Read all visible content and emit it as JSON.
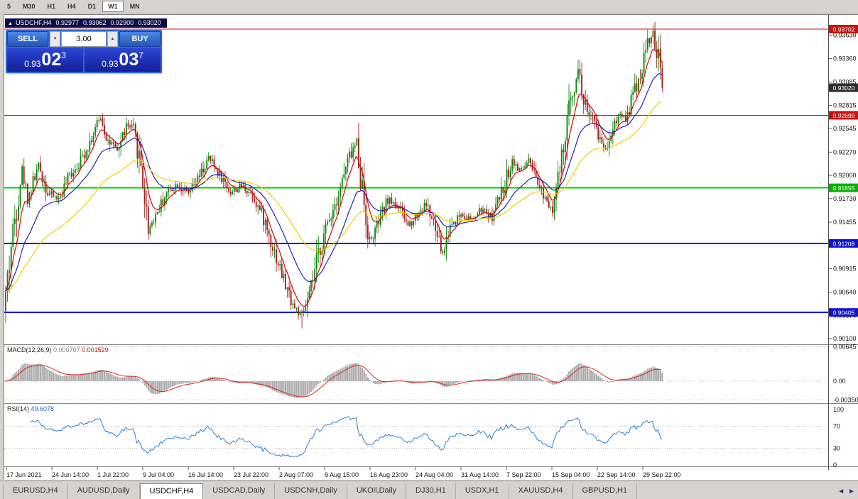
{
  "toolbar": {
    "periods": [
      "5",
      "M30",
      "H1",
      "H4",
      "D1",
      "W1",
      "MN"
    ],
    "active_period": "W1"
  },
  "chart": {
    "symbol": "USDCHF,H4",
    "open": "0.92977",
    "high": "0.93062",
    "low": "0.92900",
    "close": "0.93020"
  },
  "icons": {
    "symbol_marker": "▲",
    "vol_up": "▲",
    "vol_down": "▼",
    "tab_left": "◄",
    "tab_right": "►"
  },
  "trade_panel": {
    "sell_label": "SELL",
    "buy_label": "BUY",
    "volume": "3.00",
    "sell_price_main": "0.93",
    "sell_price_big": "02",
    "sell_price_sup": "3",
    "buy_price_main": "0.93",
    "buy_price_big": "03",
    "buy_price_sup": "7"
  },
  "price_axis_ticks": [
    "0.93630",
    "0.93360",
    "0.93085",
    "0.92815",
    "0.92545",
    "0.92270",
    "0.92000",
    "0.91730",
    "0.91455",
    "0.91185",
    "0.90915",
    "0.90640",
    "0.90370",
    "0.90100"
  ],
  "price_badges": [
    {
      "value": "0.93702",
      "color": "#cc1111"
    },
    {
      "value": "0.93020",
      "color": "#2f2f2f"
    },
    {
      "value": "0.92699",
      "color": "#cc1111"
    },
    {
      "value": "0.91855",
      "color": "#00b300"
    },
    {
      "value": "0.91208",
      "color": "#1111cc"
    },
    {
      "value": "0.90405",
      "color": "#1111cc"
    }
  ],
  "time_axis": [
    "17 Jun 2021",
    "24 Jun 14:00",
    "1 Jul 22:00",
    "9 Jul 04:00",
    "16 Jul 14:00",
    "23 Jul 22:00",
    "2 Aug 07:00",
    "9 Aug 15:00",
    "16 Aug 23:00",
    "24 Aug 04:00",
    "31 Aug 14:00",
    "7 Sep 22:00",
    "15 Sep 04:00",
    "22 Sep 14:00",
    "29 Sep 22:00"
  ],
  "macd_panel": {
    "name": "MACD(12,26,9)",
    "value_main": "0.000707",
    "value_signal": "0.001529",
    "axis_labels": [
      "0.00645",
      "0.00",
      "-0.00350"
    ]
  },
  "rsi_panel": {
    "name": "RSI(14)",
    "value": "49.6078",
    "axis_labels": [
      "100",
      "70",
      "30",
      "0"
    ]
  },
  "tabs": [
    "EURUSD,H4",
    "AUDUSD,Daily",
    "USDCHF,H4",
    "USDCAD,Daily",
    "USDCNH,Daily",
    "UKOil,Daily",
    "DJ30,H1",
    "USDX,H1",
    "XAUUSD,H4",
    "GBPUSD,H1"
  ],
  "active_tab": "USDCHF,H4",
  "chart_data": {
    "type": "candlestick",
    "symbol": "USDCHF",
    "timeframe": "H4",
    "n_candles": 360,
    "seed": 42,
    "price_range_visible": [
      0.9004,
      0.9385
    ],
    "up_color": "#0e8a0e",
    "down_color": "#aa1f1f",
    "close_anchors": [
      [
        0,
        0.9062
      ],
      [
        3,
        0.9118
      ],
      [
        6,
        0.9165
      ],
      [
        9,
        0.9208
      ],
      [
        12,
        0.9172
      ],
      [
        18,
        0.9212
      ],
      [
        23,
        0.918
      ],
      [
        29,
        0.9172
      ],
      [
        35,
        0.92
      ],
      [
        41,
        0.9218
      ],
      [
        48,
        0.9248
      ],
      [
        52,
        0.9268
      ],
      [
        56,
        0.924
      ],
      [
        61,
        0.9228
      ],
      [
        66,
        0.9258
      ],
      [
        70,
        0.9252
      ],
      [
        74,
        0.9212
      ],
      [
        78,
        0.9138
      ],
      [
        83,
        0.9158
      ],
      [
        88,
        0.918
      ],
      [
        94,
        0.919
      ],
      [
        100,
        0.9178
      ],
      [
        106,
        0.9198
      ],
      [
        111,
        0.922
      ],
      [
        118,
        0.9198
      ],
      [
        123,
        0.918
      ],
      [
        129,
        0.9188
      ],
      [
        135,
        0.9178
      ],
      [
        141,
        0.915
      ],
      [
        146,
        0.9118
      ],
      [
        153,
        0.9072
      ],
      [
        158,
        0.9046
      ],
      [
        162,
        0.9036
      ],
      [
        166,
        0.9058
      ],
      [
        171,
        0.9108
      ],
      [
        177,
        0.915
      ],
      [
        182,
        0.918
      ],
      [
        188,
        0.9222
      ],
      [
        192,
        0.9238
      ],
      [
        195,
        0.9185
      ],
      [
        199,
        0.9122
      ],
      [
        203,
        0.914
      ],
      [
        209,
        0.9172
      ],
      [
        214,
        0.9166
      ],
      [
        220,
        0.9142
      ],
      [
        225,
        0.9155
      ],
      [
        230,
        0.9168
      ],
      [
        236,
        0.9128
      ],
      [
        239,
        0.9108
      ],
      [
        243,
        0.9142
      ],
      [
        249,
        0.9155
      ],
      [
        255,
        0.9148
      ],
      [
        260,
        0.916
      ],
      [
        266,
        0.9152
      ],
      [
        272,
        0.9185
      ],
      [
        277,
        0.9218
      ],
      [
        281,
        0.9205
      ],
      [
        286,
        0.9216
      ],
      [
        290,
        0.9192
      ],
      [
        296,
        0.9172
      ],
      [
        299,
        0.9162
      ],
      [
        304,
        0.9215
      ],
      [
        309,
        0.929
      ],
      [
        313,
        0.9325
      ],
      [
        316,
        0.9288
      ],
      [
        320,
        0.9268
      ],
      [
        324,
        0.9248
      ],
      [
        328,
        0.923
      ],
      [
        332,
        0.9258
      ],
      [
        336,
        0.9272
      ],
      [
        339,
        0.9266
      ],
      [
        343,
        0.9295
      ],
      [
        347,
        0.9318
      ],
      [
        351,
        0.9356
      ],
      [
        354,
        0.9362
      ],
      [
        357,
        0.9332
      ],
      [
        359,
        0.9302
      ]
    ],
    "pins": [
      {
        "i": 52,
        "h": 0.92702
      },
      {
        "i": 162,
        "l": 0.9022
      },
      {
        "i": 313,
        "h": 0.9334
      },
      {
        "i": 351,
        "h": 0.93697
      }
    ],
    "last_close": 0.9302,
    "h_lines": [
      {
        "price": 0.93702,
        "color": "#cc1111",
        "width": 1
      },
      {
        "price": 0.92699,
        "color": "#cc1111",
        "width": 1
      },
      {
        "price": 0.91855,
        "color": "#00cc00",
        "width": 2
      },
      {
        "price": 0.91208,
        "color": "#0000ee",
        "width": 2
      },
      {
        "price": 0.90405,
        "color": "#0000ee",
        "width": 2
      }
    ],
    "moving_averages": [
      {
        "period": 8,
        "color": "#dd0000"
      },
      {
        "period": 24,
        "color": "#2222bb"
      },
      {
        "period": 55,
        "color": "#f0d000"
      }
    ],
    "macd": {
      "fast": 12,
      "slow": 26,
      "signal": 9,
      "hist_color": "#ababab",
      "signal_color": "#dd2222",
      "range": [
        -0.0035,
        0.00645
      ]
    },
    "rsi": {
      "period": 14,
      "color": "#2f7fd0",
      "levels": [
        70,
        30
      ]
    }
  }
}
